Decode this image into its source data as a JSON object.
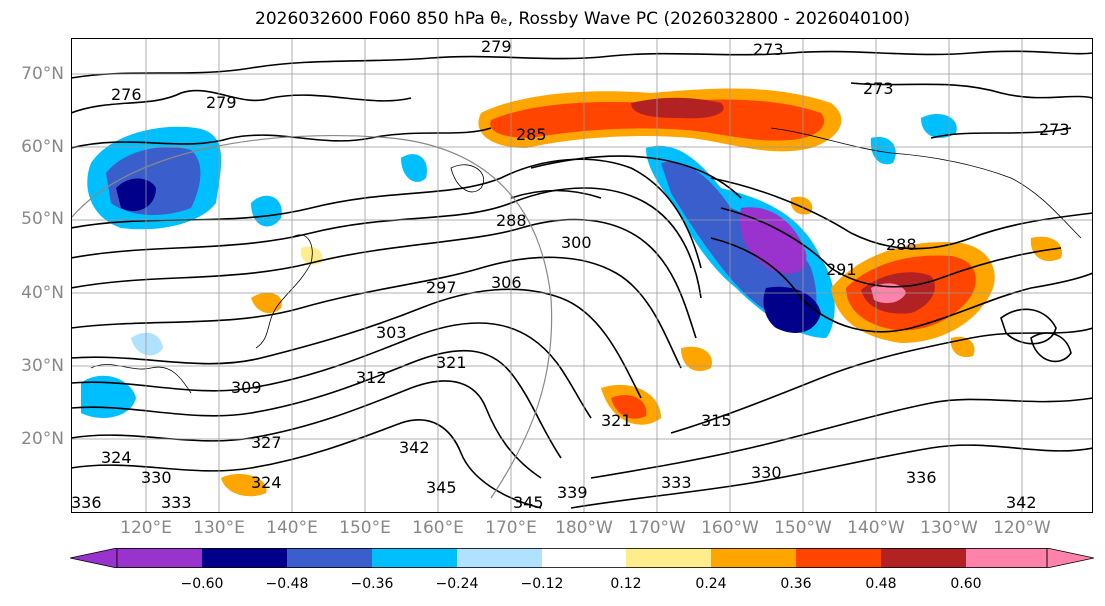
{
  "title": "2026032600 F060 850 hPa θₑ, Rossby Wave PC (2026032800 - 2026040100)",
  "lat_labels": [
    "70°N",
    "60°N",
    "50°N",
    "40°N",
    "30°N",
    "20°N"
  ],
  "lon_labels": [
    "120°E",
    "130°E",
    "140°E",
    "150°E",
    "160°E",
    "170°E",
    "180°W",
    "170°W",
    "160°W",
    "150°W",
    "140°W",
    "130°W",
    "120°W"
  ],
  "contour_labels": [
    "279",
    "273",
    "276",
    "279",
    "273",
    "273",
    "285",
    "288",
    "300",
    "297",
    "306",
    "303",
    "288",
    "291",
    "312",
    "321",
    "309",
    "315",
    "327",
    "321",
    "324",
    "324",
    "330",
    "342",
    "345",
    "345",
    "339",
    "333",
    "330",
    "336",
    "342",
    "336",
    "333"
  ],
  "colorbar": {
    "ticks": [
      "−0.60",
      "−0.48",
      "−0.36",
      "−0.24",
      "−0.12",
      "0.12",
      "0.24",
      "0.36",
      "0.48",
      "0.60"
    ],
    "colors": [
      "#9a32cd",
      "#00008b",
      "#3a5fcd",
      "#00bfff",
      "#b0e2ff",
      "#ffffff",
      "#ffec8b",
      "#ffa500",
      "#ff4500",
      "#b22222",
      "#ff82ab"
    ],
    "levels": [
      -0.72,
      -0.6,
      -0.48,
      -0.36,
      -0.24,
      -0.12,
      0.12,
      0.24,
      0.36,
      0.48,
      0.6,
      0.72
    ]
  },
  "map": {
    "lat_range": [
      10,
      75
    ],
    "lon_range_east": [
      112,
      252
    ],
    "grid": true,
    "field": "850 hPa equivalent potential temperature contours (K) with Rossby Wave PC shading"
  }
}
